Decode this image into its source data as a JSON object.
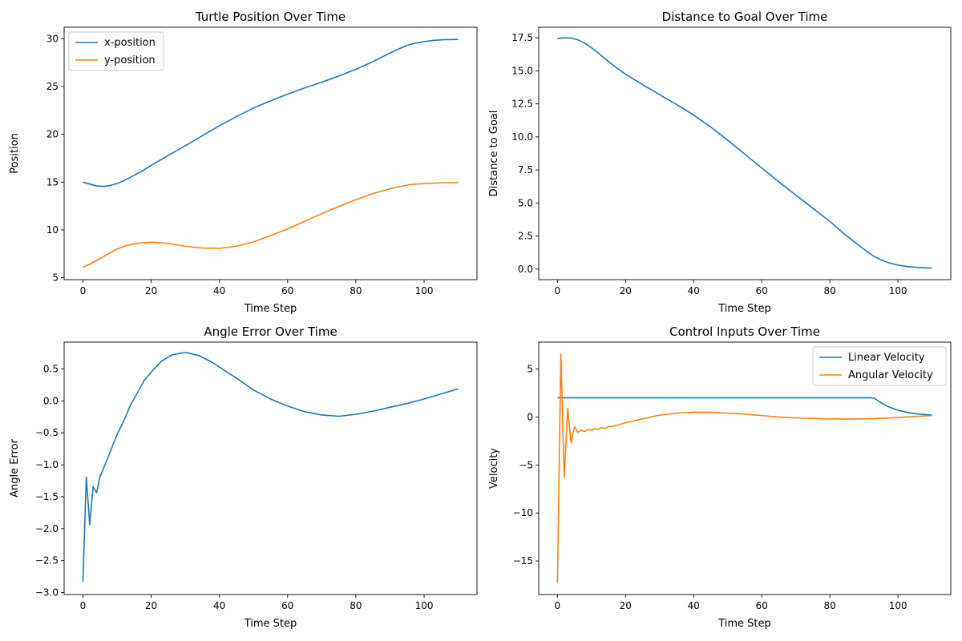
{
  "chart_data": [
    {
      "type": "line",
      "title": "Turtle Position Over Time",
      "xlabel": "Time Step",
      "ylabel": "Position",
      "xlim": [
        -5.5,
        115.5
      ],
      "ylim": [
        4.8,
        31.2
      ],
      "xticks": [
        0,
        20,
        40,
        60,
        80,
        100
      ],
      "yticks": [
        5,
        10,
        15,
        20,
        25,
        30
      ],
      "ytick_labels": [
        "5",
        "10",
        "15",
        "20",
        "25",
        "30"
      ],
      "legend": "top-left",
      "series": [
        {
          "name": "x-position",
          "color": "#1f77b4",
          "x": [
            0,
            2,
            4,
            6,
            8,
            10,
            12,
            15,
            18,
            20,
            25,
            30,
            35,
            40,
            45,
            50,
            55,
            60,
            65,
            70,
            75,
            80,
            85,
            90,
            93,
            95,
            97,
            100,
            103,
            106,
            110
          ],
          "y": [
            15.0,
            14.8,
            14.6,
            14.55,
            14.65,
            14.85,
            15.15,
            15.7,
            16.3,
            16.75,
            17.8,
            18.8,
            19.85,
            20.9,
            21.85,
            22.75,
            23.5,
            24.2,
            24.85,
            25.45,
            26.1,
            26.8,
            27.6,
            28.5,
            29.0,
            29.3,
            29.5,
            29.7,
            29.83,
            29.9,
            29.93
          ]
        },
        {
          "name": "y-position",
          "color": "#ff7f0e",
          "x": [
            0,
            2,
            5,
            8,
            10,
            13,
            16,
            19,
            22,
            25,
            30,
            35,
            40,
            45,
            50,
            55,
            60,
            65,
            70,
            75,
            80,
            85,
            90,
            95,
            98,
            100,
            105,
            110
          ],
          "y": [
            6.1,
            6.4,
            7.0,
            7.6,
            8.0,
            8.4,
            8.6,
            8.7,
            8.68,
            8.58,
            8.3,
            8.1,
            8.08,
            8.3,
            8.75,
            9.4,
            10.1,
            10.9,
            11.7,
            12.45,
            13.15,
            13.8,
            14.3,
            14.7,
            14.8,
            14.85,
            14.92,
            14.95
          ]
        }
      ]
    },
    {
      "type": "line",
      "title": "Distance to Goal Over Time",
      "xlabel": "Time Step",
      "ylabel": "Distance to Goal",
      "xlim": [
        -5.5,
        115.5
      ],
      "ylim": [
        -0.8,
        18.3
      ],
      "xticks": [
        0,
        20,
        40,
        60,
        80,
        100
      ],
      "yticks": [
        0.0,
        2.5,
        5.0,
        7.5,
        10.0,
        12.5,
        15.0,
        17.5
      ],
      "ytick_labels": [
        "0.0",
        "2.5",
        "5.0",
        "7.5",
        "10.0",
        "12.5",
        "15.0",
        "17.5"
      ],
      "series": [
        {
          "name": "",
          "color": "#1f77b4",
          "x": [
            0,
            2,
            4,
            6,
            8,
            10,
            12,
            15,
            18,
            20,
            25,
            30,
            35,
            40,
            45,
            50,
            55,
            60,
            65,
            70,
            75,
            80,
            85,
            90,
            93,
            95,
            97,
            100,
            103,
            106,
            110
          ],
          "y": [
            17.45,
            17.5,
            17.48,
            17.35,
            17.1,
            16.75,
            16.35,
            15.7,
            15.1,
            14.75,
            13.95,
            13.2,
            12.45,
            11.65,
            10.75,
            9.75,
            8.7,
            7.65,
            6.6,
            5.6,
            4.6,
            3.6,
            2.5,
            1.5,
            0.95,
            0.7,
            0.5,
            0.3,
            0.18,
            0.12,
            0.07
          ]
        }
      ]
    },
    {
      "type": "line",
      "title": "Angle Error Over Time",
      "xlabel": "Time Step",
      "ylabel": "Angle Error",
      "xlim": [
        -5.5,
        115.5
      ],
      "ylim": [
        -3.03,
        0.92
      ],
      "xticks": [
        0,
        20,
        40,
        60,
        80,
        100
      ],
      "yticks": [
        -3.0,
        -2.5,
        -2.0,
        -1.5,
        -1.0,
        -0.5,
        0.0,
        0.5
      ],
      "ytick_labels": [
        "−3.0",
        "−2.5",
        "−2.0",
        "−1.5",
        "−1.0",
        "−0.5",
        "0.0",
        "0.5"
      ],
      "series": [
        {
          "name": "",
          "color": "#1f77b4",
          "x": [
            0,
            1,
            2,
            3,
            4,
            5,
            7,
            10,
            12,
            14,
            16,
            18,
            20,
            23,
            26,
            30,
            34,
            38,
            42,
            46,
            50,
            55,
            60,
            65,
            70,
            75,
            80,
            85,
            90,
            95,
            100,
            105,
            110
          ],
          "y": [
            -2.83,
            -1.19,
            -1.94,
            -1.34,
            -1.44,
            -1.19,
            -0.93,
            -0.53,
            -0.31,
            -0.06,
            0.13,
            0.32,
            0.45,
            0.62,
            0.72,
            0.76,
            0.71,
            0.6,
            0.46,
            0.32,
            0.17,
            0.03,
            -0.08,
            -0.17,
            -0.22,
            -0.24,
            -0.21,
            -0.16,
            -0.1,
            -0.04,
            0.03,
            0.11,
            0.19
          ]
        }
      ]
    },
    {
      "type": "line",
      "title": "Control Inputs Over Time",
      "xlabel": "Time Step",
      "ylabel": "Velocity",
      "xlim": [
        -5.5,
        115.5
      ],
      "ylim": [
        -18.5,
        7.8
      ],
      "xticks": [
        0,
        20,
        40,
        60,
        80,
        100
      ],
      "yticks": [
        -15,
        -10,
        -5,
        0,
        5
      ],
      "ytick_labels": [
        "−15",
        "−10",
        "−5",
        "0",
        "5"
      ],
      "legend": "top-right",
      "series": [
        {
          "name": "Linear Velocity",
          "color": "#1f77b4",
          "x": [
            0,
            10,
            20,
            40,
            60,
            80,
            92,
            93,
            95,
            97,
            100,
            103,
            106,
            110
          ],
          "y": [
            2.0,
            2.0,
            2.0,
            2.0,
            2.0,
            2.0,
            2.0,
            1.95,
            1.5,
            1.1,
            0.7,
            0.45,
            0.3,
            0.2
          ]
        },
        {
          "name": "Angular Velocity",
          "color": "#ff7f0e",
          "x": [
            0,
            1,
            2,
            3,
            4,
            5,
            6,
            7,
            8,
            9,
            10,
            11,
            12,
            13,
            14,
            15,
            16,
            18,
            20,
            25,
            30,
            35,
            40,
            45,
            50,
            55,
            60,
            65,
            70,
            75,
            80,
            85,
            90,
            95,
            100,
            105,
            110
          ],
          "y": [
            -17.3,
            6.6,
            -6.3,
            0.9,
            -2.7,
            -1.0,
            -1.6,
            -1.4,
            -1.5,
            -1.3,
            -1.4,
            -1.2,
            -1.3,
            -1.1,
            -1.2,
            -1.0,
            -1.0,
            -0.8,
            -0.6,
            -0.2,
            0.2,
            0.4,
            0.5,
            0.5,
            0.4,
            0.3,
            0.15,
            0.0,
            -0.1,
            -0.15,
            -0.2,
            -0.22,
            -0.2,
            -0.15,
            -0.05,
            0.05,
            0.15
          ]
        }
      ]
    }
  ]
}
